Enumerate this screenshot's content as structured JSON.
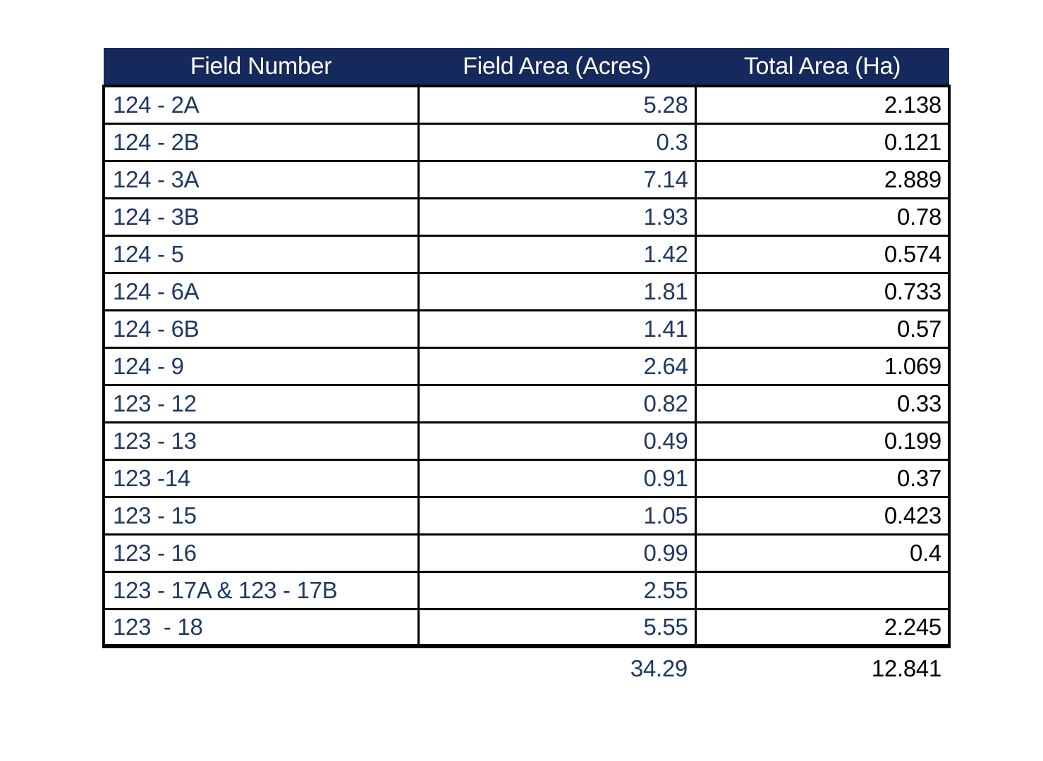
{
  "colors": {
    "page_bg": "#FFFFFF",
    "header_bg": "#16295C",
    "navy_text": "#1F3864",
    "black_text": "#000000",
    "border_color": "#000000"
  },
  "chart_data": {
    "type": "table",
    "columns": [
      "Field Number",
      "Field Area (Acres)",
      "Total Area (Ha)"
    ],
    "rows": [
      [
        "124 - 2A",
        5.28,
        2.138
      ],
      [
        "124 - 2B",
        0.3,
        0.121
      ],
      [
        "124 - 3A",
        7.14,
        2.889
      ],
      [
        "124 - 3B",
        1.93,
        0.78
      ],
      [
        "124 - 5",
        1.42,
        0.574
      ],
      [
        "124 - 6A",
        1.81,
        0.733
      ],
      [
        "124 - 6B",
        1.41,
        0.57
      ],
      [
        "124 - 9",
        2.64,
        1.069
      ],
      [
        "123 - 12",
        0.82,
        0.33
      ],
      [
        "123 - 13",
        0.49,
        0.199
      ],
      [
        "123 -14",
        0.91,
        0.37
      ],
      [
        "123 - 15",
        1.05,
        0.423
      ],
      [
        "123 - 16",
        0.99,
        0.4
      ],
      [
        "123 - 17A & 123 - 17B",
        2.55,
        null
      ],
      [
        "123  - 18",
        5.55,
        2.245
      ]
    ],
    "totals": [
      null,
      34.29,
      12.841
    ],
    "layout_hints": {
      "header_fill": "#16295C",
      "header_text_color": "#FFFFFF",
      "field_and_acres_text_color": "#1F3864",
      "ha_text_color": "#000000",
      "grid": "black solid borders on data rows, none inside header",
      "alignment": {
        "field": "left",
        "acres": "right",
        "ha": "right"
      },
      "totals_row_outside_borders": true
    }
  }
}
